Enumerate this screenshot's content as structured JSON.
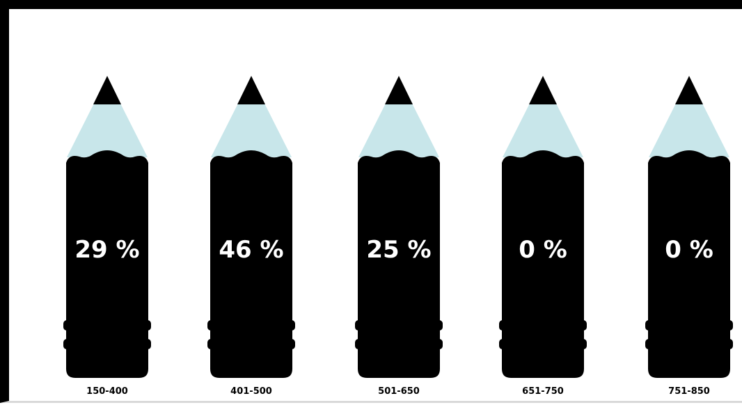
{
  "chart_data": {
    "type": "bar",
    "title": "",
    "xlabel": "",
    "ylabel": "",
    "ylim": [
      0,
      100
    ],
    "unit": "%",
    "categories": [
      "150-400",
      "401-500",
      "501-650",
      "651-750",
      "751-850"
    ],
    "values": [
      29,
      46,
      25,
      0,
      0
    ],
    "value_labels": [
      "29 %",
      "46 %",
      "25 %",
      "0 %",
      "0 %"
    ]
  },
  "colors": {
    "pencil_body": "#000000",
    "pencil_wood": "#c8e6ea",
    "pencil_lead": "#000000",
    "value_text": "#ffffff",
    "category_text": "#000000"
  }
}
